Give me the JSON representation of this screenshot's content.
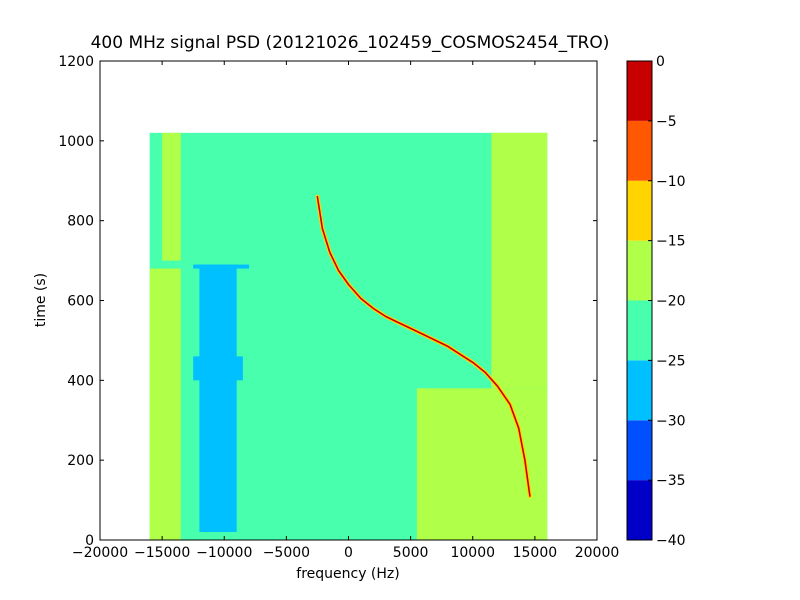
{
  "chart_data": {
    "type": "heatmap",
    "title": "400 MHz signal PSD (20121026_102459_COSMOS2454_TRO)",
    "xlabel": "frequency (Hz)",
    "ylabel": "time (s)",
    "xlim": [
      -20000,
      20000
    ],
    "ylim": [
      0,
      1200
    ],
    "x_ticks": [
      -20000,
      -15000,
      -10000,
      -5000,
      0,
      5000,
      10000,
      15000,
      20000
    ],
    "x_tick_labels": [
      "−20000",
      "−15000",
      "−10000",
      "−5000",
      "0",
      "5000",
      "10000",
      "15000",
      "20000"
    ],
    "y_ticks": [
      0,
      200,
      400,
      600,
      800,
      1000,
      1200
    ],
    "y_tick_labels": [
      "0",
      "200",
      "400",
      "600",
      "800",
      "1000",
      "1200"
    ],
    "data_extent": {
      "x": [
        -16000,
        16000
      ],
      "y": [
        0,
        1020
      ]
    },
    "colorbar": {
      "range": [
        -40,
        0
      ],
      "ticks": [
        0,
        -5,
        -10,
        -15,
        -20,
        -25,
        -30,
        -35,
        -40
      ],
      "tick_labels": [
        "0",
        "−5",
        "−10",
        "−15",
        "−20",
        "−25",
        "−30",
        "−35",
        "−40"
      ],
      "levels": [
        {
          "from": -40,
          "to": -35,
          "color": "#0000c8"
        },
        {
          "from": -35,
          "to": -30,
          "color": "#0050ff"
        },
        {
          "from": -30,
          "to": -25,
          "color": "#00c0ff"
        },
        {
          "from": -25,
          "to": -20,
          "color": "#48ffae"
        },
        {
          "from": -20,
          "to": -15,
          "color": "#b0ff48"
        },
        {
          "from": -15,
          "to": -10,
          "color": "#ffd400"
        },
        {
          "from": -10,
          "to": -5,
          "color": "#ff5800"
        },
        {
          "from": -5,
          "to": 0,
          "color": "#c80000"
        }
      ]
    },
    "regions": [
      {
        "x": [
          -16000,
          16000
        ],
        "y": [
          0,
          1020
        ],
        "level": -22.5
      },
      {
        "x": [
          -16000,
          -13500
        ],
        "y": [
          0,
          680
        ],
        "level": -17.5
      },
      {
        "x": [
          -15000,
          -13500
        ],
        "y": [
          700,
          1020
        ],
        "level": -17.5
      },
      {
        "x": [
          5500,
          16000
        ],
        "y": [
          0,
          380
        ],
        "level": -17.5
      },
      {
        "x": [
          11500,
          16000
        ],
        "y": [
          380,
          1020
        ],
        "level": -17.5
      },
      {
        "x": [
          -12000,
          -9000
        ],
        "y": [
          20,
          690
        ],
        "level": -27.5
      },
      {
        "x": [
          -12500,
          -8500
        ],
        "y": [
          400,
          460
        ],
        "level": -27.5
      },
      {
        "x": [
          -12500,
          -8000
        ],
        "y": [
          680,
          690
        ],
        "level": -27.5
      }
    ],
    "signal_trace": {
      "level": -2.5,
      "points": [
        [
          -2500,
          860
        ],
        [
          -2100,
          780
        ],
        [
          -1500,
          720
        ],
        [
          -800,
          675
        ],
        [
          0,
          640
        ],
        [
          1000,
          605
        ],
        [
          2000,
          580
        ],
        [
          3000,
          560
        ],
        [
          4000,
          545
        ],
        [
          5000,
          530
        ],
        [
          6000,
          515
        ],
        [
          7000,
          500
        ],
        [
          8000,
          485
        ],
        [
          9000,
          465
        ],
        [
          10000,
          445
        ],
        [
          11000,
          420
        ],
        [
          12000,
          385
        ],
        [
          13000,
          340
        ],
        [
          13700,
          280
        ],
        [
          14200,
          200
        ],
        [
          14600,
          110
        ]
      ]
    }
  }
}
